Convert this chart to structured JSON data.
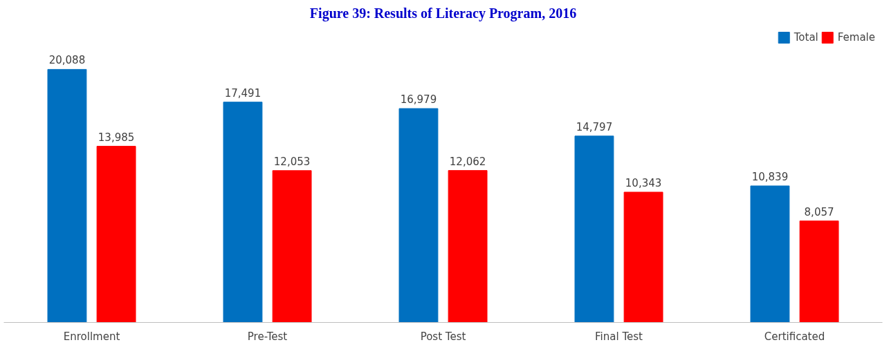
{
  "chart_data": {
    "type": "bar",
    "title": "Figure 39: Results of Literacy Program, 2016",
    "categories": [
      "Enrollment",
      "Pre-Test",
      "Post Test",
      "Final Test",
      "Certificated"
    ],
    "series": [
      {
        "name": "Total",
        "color": "#0070c0",
        "values": [
          20088,
          17491,
          16979,
          14797,
          10839
        ],
        "value_labels": [
          "20,088",
          "17,491",
          "16,979",
          "14,797",
          "10,839"
        ]
      },
      {
        "name": "Female",
        "color": "#ff0000",
        "values": [
          13985,
          12053,
          12062,
          10343,
          8057
        ],
        "value_labels": [
          "13,985",
          "12,053",
          "12,062",
          "10,343",
          "8,057"
        ]
      }
    ],
    "legend": "top right",
    "grid": false
  }
}
